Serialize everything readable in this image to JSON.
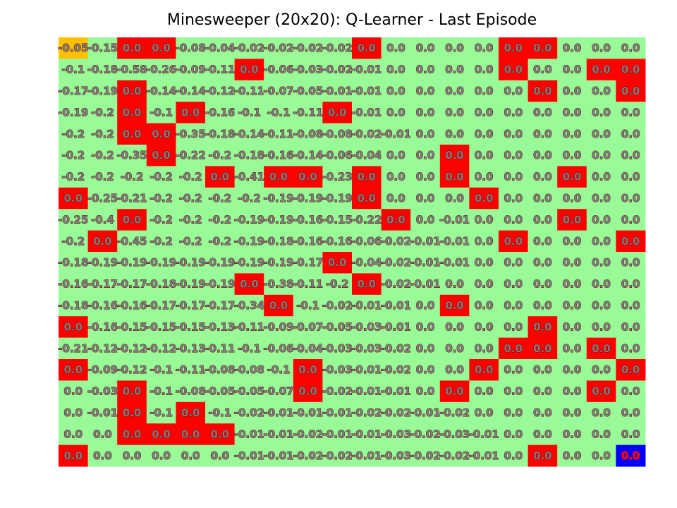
{
  "chart_data": {
    "type": "heatmap",
    "title": "Minesweeper (20x20): Q-Learner - Last Episode",
    "rows": 20,
    "cols": 20,
    "colors": {
      "free": "#98fb98",
      "mine": "#ff0000",
      "start": "#ffc000",
      "goal": "#0000ff"
    },
    "start_cell": [
      0,
      0
    ],
    "goal_cell": [
      19,
      19
    ],
    "mine_cells": [
      [
        0,
        2
      ],
      [
        0,
        3
      ],
      [
        0,
        10
      ],
      [
        0,
        15
      ],
      [
        0,
        16
      ],
      [
        1,
        6
      ],
      [
        1,
        15
      ],
      [
        1,
        18
      ],
      [
        1,
        19
      ],
      [
        2,
        2
      ],
      [
        2,
        16
      ],
      [
        2,
        19
      ],
      [
        3,
        2
      ],
      [
        3,
        4
      ],
      [
        3,
        9
      ],
      [
        4,
        2
      ],
      [
        4,
        3
      ],
      [
        5,
        3
      ],
      [
        5,
        13
      ],
      [
        6,
        5
      ],
      [
        6,
        7
      ],
      [
        6,
        8
      ],
      [
        6,
        10
      ],
      [
        6,
        13
      ],
      [
        6,
        17
      ],
      [
        7,
        0
      ],
      [
        7,
        10
      ],
      [
        7,
        14
      ],
      [
        8,
        2
      ],
      [
        8,
        11
      ],
      [
        8,
        17
      ],
      [
        9,
        1
      ],
      [
        9,
        15
      ],
      [
        9,
        19
      ],
      [
        10,
        9
      ],
      [
        11,
        6
      ],
      [
        11,
        10
      ],
      [
        12,
        7
      ],
      [
        12,
        13
      ],
      [
        13,
        0
      ],
      [
        13,
        16
      ],
      [
        14,
        15
      ],
      [
        14,
        16
      ],
      [
        14,
        18
      ],
      [
        15,
        0
      ],
      [
        15,
        8
      ],
      [
        15,
        14
      ],
      [
        15,
        19
      ],
      [
        16,
        2
      ],
      [
        16,
        8
      ],
      [
        16,
        13
      ],
      [
        16,
        18
      ],
      [
        17,
        2
      ],
      [
        17,
        4
      ],
      [
        18,
        2
      ],
      [
        18,
        3
      ],
      [
        18,
        4
      ],
      [
        18,
        5
      ],
      [
        19,
        0
      ],
      [
        19,
        16
      ]
    ],
    "values": [
      [
        "-0.05",
        "-0.15",
        "0.0",
        "0.0",
        "-0.08",
        "-0.04",
        "-0.02",
        "-0.02",
        "-0.02",
        "-0.02",
        "0.0",
        "0.0",
        "0.0",
        "0.0",
        "0.0",
        "0.0",
        "0.0",
        "0.0",
        "0.0",
        "0.0"
      ],
      [
        "-0.1",
        "-0.18",
        "-0.58",
        "-0.26",
        "-0.09",
        "-0.11",
        "0.0",
        "-0.06",
        "-0.03",
        "-0.02",
        "-0.01",
        "0.0",
        "0.0",
        "0.0",
        "0.0",
        "0.0",
        "0.0",
        "0.0",
        "0.0",
        "0.0"
      ],
      [
        "-0.17",
        "-0.19",
        "0.0",
        "-0.14",
        "-0.14",
        "-0.12",
        "-0.11",
        "-0.07",
        "-0.05",
        "-0.01",
        "-0.01",
        "0.0",
        "0.0",
        "0.0",
        "0.0",
        "0.0",
        "0.0",
        "0.0",
        "0.0",
        "0.0"
      ],
      [
        "-0.19",
        "-0.2",
        "0.0",
        "-0.1",
        "0.0",
        "-0.16",
        "-0.1",
        "-0.1",
        "-0.11",
        "0.0",
        "-0.01",
        "0.0",
        "0.0",
        "0.0",
        "0.0",
        "0.0",
        "0.0",
        "0.0",
        "0.0",
        "0.0"
      ],
      [
        "-0.2",
        "-0.2",
        "0.0",
        "0.0",
        "-0.35",
        "-0.18",
        "-0.14",
        "-0.11",
        "-0.08",
        "-0.08",
        "-0.02",
        "-0.01",
        "0.0",
        "0.0",
        "0.0",
        "0.0",
        "0.0",
        "0.0",
        "0.0",
        "0.0"
      ],
      [
        "-0.2",
        "-0.2",
        "-0.35",
        "0.0",
        "-0.22",
        "-0.2",
        "-0.18",
        "-0.16",
        "-0.14",
        "-0.06",
        "-0.04",
        "0.0",
        "0.0",
        "0.0",
        "0.0",
        "0.0",
        "0.0",
        "0.0",
        "0.0",
        "0.0"
      ],
      [
        "-0.2",
        "-0.2",
        "-0.2",
        "-0.2",
        "-0.2",
        "0.0",
        "-0.41",
        "0.0",
        "0.0",
        "-0.23",
        "0.0",
        "0.0",
        "0.0",
        "0.0",
        "0.0",
        "0.0",
        "0.0",
        "0.0",
        "0.0",
        "0.0"
      ],
      [
        "0.0",
        "-0.25",
        "-0.21",
        "-0.2",
        "-0.2",
        "-0.2",
        "-0.2",
        "-0.19",
        "-0.19",
        "-0.19",
        "0.0",
        "0.0",
        "0.0",
        "0.0",
        "0.0",
        "0.0",
        "0.0",
        "0.0",
        "0.0",
        "0.0"
      ],
      [
        "-0.25",
        "-0.4",
        "0.0",
        "-0.2",
        "-0.2",
        "-0.2",
        "-0.19",
        "-0.19",
        "-0.16",
        "-0.15",
        "-0.22",
        "0.0",
        "0.0",
        "-0.01",
        "0.0",
        "0.0",
        "0.0",
        "0.0",
        "0.0",
        "0.0"
      ],
      [
        "-0.2",
        "0.0",
        "-0.45",
        "-0.2",
        "-0.2",
        "-0.2",
        "-0.19",
        "-0.18",
        "-0.16",
        "-0.16",
        "-0.06",
        "-0.02",
        "-0.01",
        "-0.01",
        "0.0",
        "0.0",
        "0.0",
        "0.0",
        "0.0",
        "0.0"
      ],
      [
        "-0.18",
        "-0.19",
        "-0.19",
        "-0.19",
        "-0.19",
        "-0.19",
        "-0.19",
        "-0.19",
        "-0.17",
        "0.0",
        "-0.04",
        "-0.02",
        "-0.01",
        "-0.01",
        "0.0",
        "0.0",
        "0.0",
        "0.0",
        "0.0",
        "0.0"
      ],
      [
        "-0.16",
        "-0.17",
        "-0.17",
        "-0.18",
        "-0.19",
        "-0.19",
        "0.0",
        "-0.38",
        "-0.11",
        "-0.2",
        "0.0",
        "-0.02",
        "-0.01",
        "0.0",
        "0.0",
        "0.0",
        "0.0",
        "0.0",
        "0.0",
        "0.0"
      ],
      [
        "-0.18",
        "-0.16",
        "-0.16",
        "-0.17",
        "-0.17",
        "-0.17",
        "-0.34",
        "0.0",
        "-0.1",
        "-0.02",
        "-0.01",
        "-0.01",
        "0.0",
        "0.0",
        "0.0",
        "0.0",
        "0.0",
        "0.0",
        "0.0",
        "0.0"
      ],
      [
        "0.0",
        "-0.16",
        "-0.15",
        "-0.15",
        "-0.15",
        "-0.13",
        "-0.11",
        "-0.09",
        "-0.07",
        "-0.05",
        "-0.03",
        "-0.01",
        "0.0",
        "0.0",
        "0.0",
        "0.0",
        "0.0",
        "0.0",
        "0.0",
        "0.0"
      ],
      [
        "-0.21",
        "-0.12",
        "-0.12",
        "-0.12",
        "-0.13",
        "-0.11",
        "-0.1",
        "-0.06",
        "-0.04",
        "-0.03",
        "-0.03",
        "-0.02",
        "0.0",
        "0.0",
        "0.0",
        "0.0",
        "0.0",
        "0.0",
        "0.0",
        "0.0"
      ],
      [
        "0.0",
        "-0.09",
        "-0.12",
        "-0.1",
        "-0.11",
        "-0.08",
        "-0.08",
        "-0.1",
        "0.0",
        "-0.03",
        "-0.01",
        "-0.02",
        "0.0",
        "0.0",
        "0.0",
        "0.0",
        "0.0",
        "0.0",
        "0.0",
        "0.0"
      ],
      [
        "0.0",
        "-0.03",
        "0.0",
        "-0.1",
        "-0.08",
        "-0.05",
        "-0.05",
        "-0.07",
        "0.0",
        "-0.02",
        "-0.01",
        "-0.01",
        "0.0",
        "0.0",
        "0.0",
        "0.0",
        "0.0",
        "0.0",
        "0.0",
        "0.0"
      ],
      [
        "0.0",
        "-0.01",
        "0.0",
        "-0.1",
        "0.0",
        "-0.1",
        "-0.02",
        "-0.01",
        "-0.01",
        "-0.01",
        "-0.02",
        "-0.02",
        "-0.01",
        "-0.02",
        "0.0",
        "0.0",
        "0.0",
        "0.0",
        "0.0",
        "0.0"
      ],
      [
        "0.0",
        "0.0",
        "0.0",
        "0.0",
        "0.0",
        "0.0",
        "-0.01",
        "-0.01",
        "-0.02",
        "-0.01",
        "-0.01",
        "-0.03",
        "-0.02",
        "-0.03",
        "-0.01",
        "0.0",
        "0.0",
        "0.0",
        "0.0",
        "0.0"
      ],
      [
        "0.0",
        "0.0",
        "0.0",
        "0.0",
        "0.0",
        "0.0",
        "-0.01",
        "-0.01",
        "-0.02",
        "-0.02",
        "-0.01",
        "-0.03",
        "-0.02",
        "-0.02",
        "-0.01",
        "0.0",
        "0.0",
        "0.0",
        "0.0",
        "0.0"
      ]
    ]
  }
}
